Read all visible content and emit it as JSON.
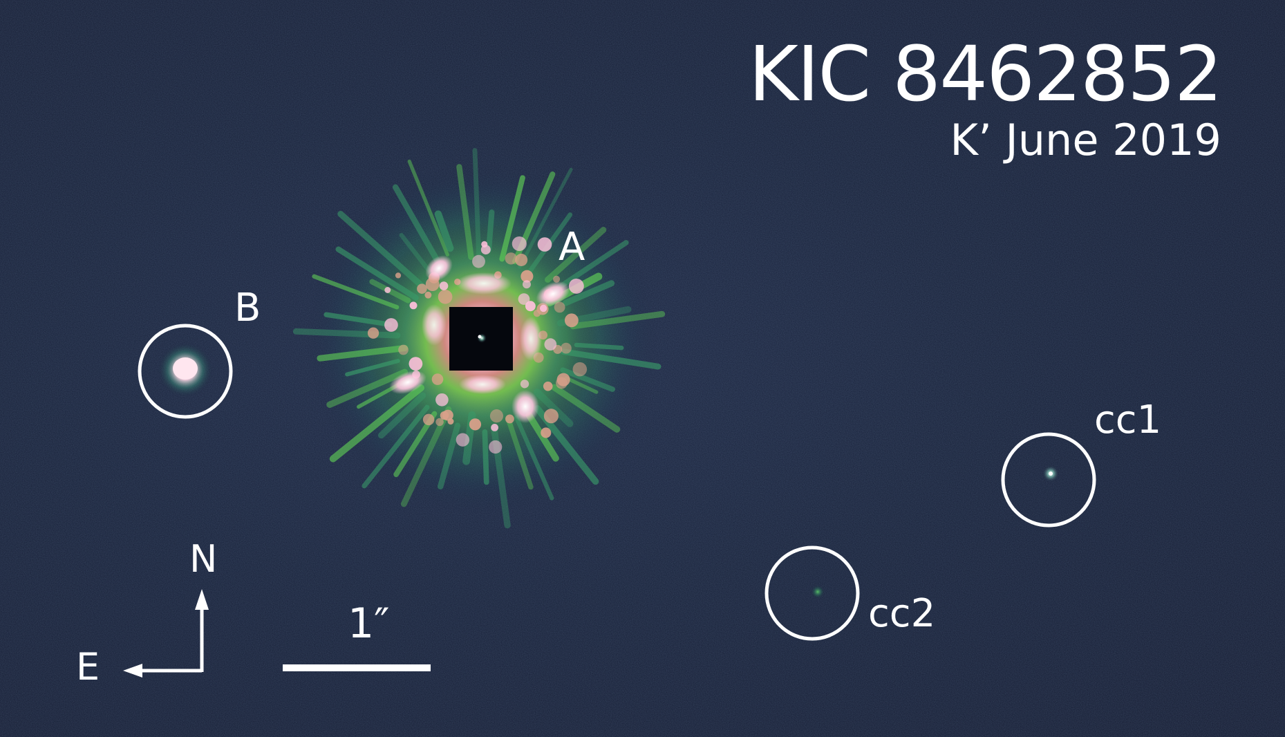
{
  "image": {
    "title": "KIC 8462852",
    "subtitle": "K’ June 2019"
  },
  "labels": {
    "primary": "A",
    "companion": "B",
    "cc1": "cc1",
    "cc2": "cc2"
  },
  "compass": {
    "north": "N",
    "east": "E"
  },
  "scale_bar": {
    "label": "1″"
  },
  "colors": {
    "background": "#161d34",
    "halo_green": "#6fd24a",
    "core_pink": "#ffb7d8",
    "annotation": "#ffffff"
  }
}
